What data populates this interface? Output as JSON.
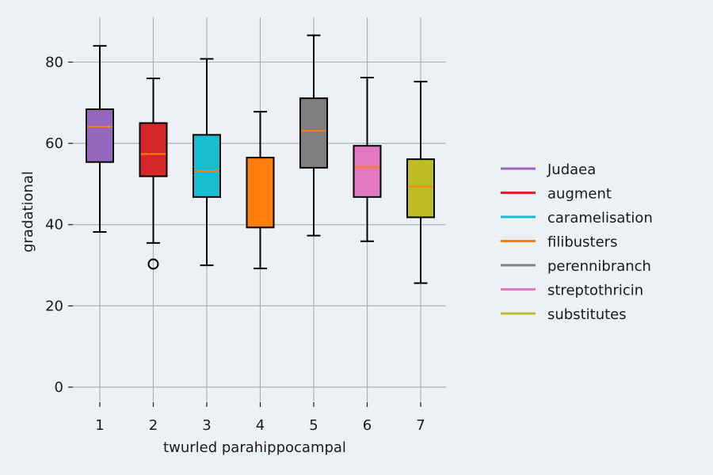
{
  "chart_data": {
    "type": "box",
    "xlabel": "twurled parahippocampal",
    "ylabel": "gradational",
    "ylim": [
      -3.5,
      91
    ],
    "yticks": [
      0,
      20,
      40,
      60,
      80
    ],
    "categories": [
      "1",
      "2",
      "3",
      "4",
      "5",
      "6",
      "7"
    ],
    "grid": true,
    "legend_position": "right",
    "series": [
      {
        "name": "Judaea",
        "color": "#9467bd",
        "whisker_low": 38.2,
        "q1": 55.4,
        "median": 64.1,
        "q3": 68.4,
        "whisker_high": 84.0,
        "outliers": []
      },
      {
        "name": "augment",
        "color": "#d62728",
        "whisker_low": 35.5,
        "q1": 51.9,
        "median": 57.4,
        "q3": 65.0,
        "whisker_high": 76.0,
        "outliers": [
          30.3
        ]
      },
      {
        "name": "caramelisation",
        "color": "#17becf",
        "whisker_low": 30.0,
        "q1": 46.8,
        "median": 53.2,
        "q3": 62.1,
        "whisker_high": 80.8,
        "outliers": []
      },
      {
        "name": "filibusters",
        "color": "#ff7f0e",
        "whisker_low": 29.2,
        "q1": 39.3,
        "median": 47.9,
        "q3": 56.5,
        "whisker_high": 67.8,
        "outliers": []
      },
      {
        "name": "perennibranch",
        "color": "#7f7f7f",
        "whisker_low": 37.3,
        "q1": 54.0,
        "median": 63.1,
        "q3": 71.1,
        "whisker_high": 86.6,
        "outliers": []
      },
      {
        "name": "streptothricin",
        "color": "#e377c2",
        "whisker_low": 35.9,
        "q1": 46.8,
        "median": 54.1,
        "q3": 59.4,
        "whisker_high": 76.2,
        "outliers": []
      },
      {
        "name": "substitutes",
        "color": "#bcbd22",
        "whisker_low": 25.6,
        "q1": 41.8,
        "median": 49.4,
        "q3": 56.1,
        "whisker_high": 75.2,
        "outliers": []
      }
    ]
  }
}
